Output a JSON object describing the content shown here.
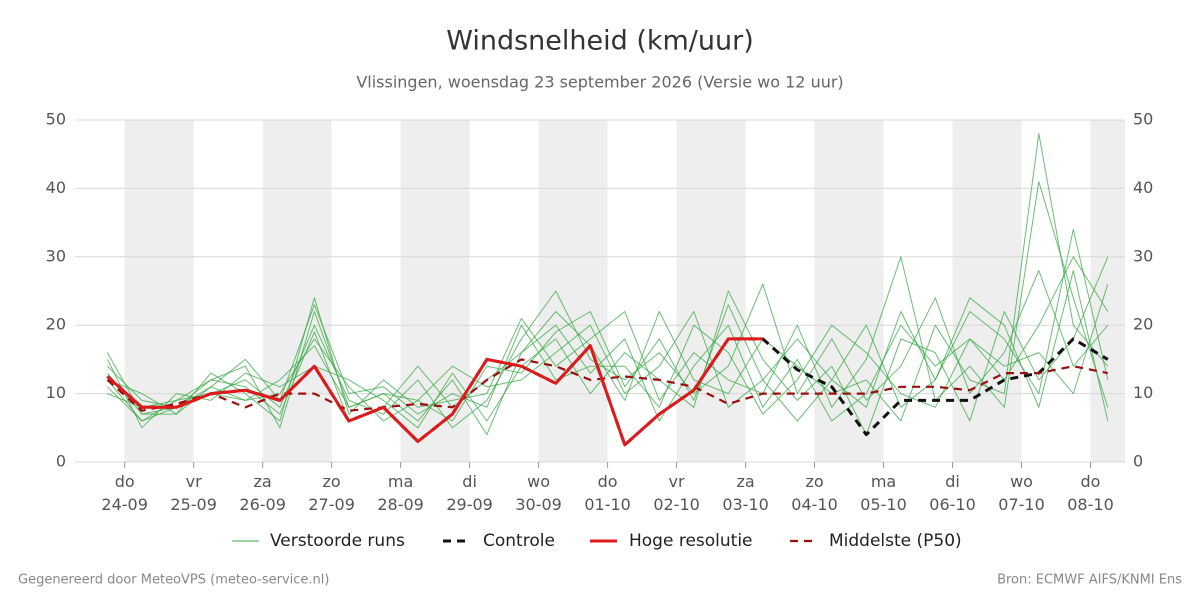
{
  "chart_data": {
    "type": "line",
    "title": "Windsnelheid (km/uur)",
    "subtitle": "Vlissingen, woensdag 23 september 2026 (Versie wo 12 uur)",
    "footer_left": "Gegenereerd door MeteoVPS (meteo-service.nl)",
    "footer_right": "Bron: ECMWF AIFS/KNMI Ens",
    "xlim": [
      -0.72,
      14.5
    ],
    "xticks": [
      {
        "value": 0,
        "label": "do 24-09"
      },
      {
        "value": 1,
        "label": "vr 25-09"
      },
      {
        "value": 2,
        "label": "za 26-09"
      },
      {
        "value": 3,
        "label": "zo 27-09"
      },
      {
        "value": 4,
        "label": "ma 28-09"
      },
      {
        "value": 5,
        "label": "di 29-09"
      },
      {
        "value": 6,
        "label": "wo 30-09"
      },
      {
        "value": 7,
        "label": "do 01-10"
      },
      {
        "value": 8,
        "label": "vr 02-10"
      },
      {
        "value": 9,
        "label": "za 03-10"
      },
      {
        "value": 10,
        "label": "zo 04-10"
      },
      {
        "value": 11,
        "label": "ma 05-10"
      },
      {
        "value": 12,
        "label": "di 06-10"
      },
      {
        "value": 13,
        "label": "wo 07-10"
      },
      {
        "value": 14,
        "label": "do 08-10"
      }
    ],
    "ylim": [
      0,
      50
    ],
    "yticks": [
      0,
      10,
      20,
      30,
      40,
      50
    ],
    "grid": true,
    "x": [
      -0.25,
      0.25,
      0.75,
      1.25,
      1.75,
      2.25,
      2.75,
      3.25,
      3.75,
      4.25,
      4.75,
      5.25,
      5.75,
      6.25,
      6.75,
      7.25,
      7.75,
      8.25,
      8.75,
      9.25,
      9.75,
      10.25,
      10.75,
      11.25,
      11.75,
      12.25,
      12.75,
      13.25,
      13.75,
      14.25
    ],
    "ensemble": {
      "name": "Verstoorde runs",
      "color": "#3aa845",
      "members": [
        [
          16,
          7,
          8,
          12,
          14,
          5,
          22,
          8,
          10,
          6,
          12,
          4,
          16,
          20,
          13,
          18,
          6,
          14,
          20,
          8,
          15,
          6,
          10,
          20,
          14,
          18,
          12,
          20,
          30,
          22
        ],
        [
          11,
          6,
          9,
          10,
          12,
          8,
          20,
          9,
          7,
          12,
          5,
          9,
          18,
          25,
          15,
          12,
          16,
          10,
          14,
          26,
          10,
          18,
          9,
          14,
          24,
          10,
          16,
          28,
          14,
          20
        ],
        [
          14,
          9,
          8,
          11,
          9,
          10,
          18,
          11,
          6,
          9,
          14,
          11,
          12,
          16,
          20,
          10,
          14,
          22,
          8,
          12,
          6,
          12,
          20,
          8,
          12,
          22,
          18,
          10,
          34,
          12
        ],
        [
          12,
          10,
          7,
          13,
          10,
          6,
          24,
          7,
          12,
          8,
          9,
          10,
          21,
          14,
          18,
          22,
          9,
          16,
          12,
          10,
          20,
          8,
          15,
          30,
          9,
          14,
          8,
          41,
          24,
          8
        ],
        [
          15,
          5,
          10,
          9,
          13,
          11,
          14,
          12,
          9,
          5,
          13,
          6,
          14,
          18,
          10,
          16,
          12,
          8,
          25,
          15,
          9,
          14,
          4,
          18,
          16,
          6,
          22,
          12,
          18,
          30
        ],
        [
          10,
          8,
          9,
          12,
          11,
          7,
          19,
          6,
          8,
          14,
          8,
          12,
          16,
          22,
          17,
          9,
          22,
          12,
          10,
          18,
          14,
          10,
          12,
          6,
          20,
          12,
          10,
          48,
          20,
          14
        ],
        [
          13,
          7,
          7,
          11,
          15,
          9,
          23,
          10,
          11,
          7,
          10,
          8,
          20,
          12,
          14,
          14,
          8,
          20,
          16,
          7,
          12,
          20,
          16,
          10,
          8,
          18,
          14,
          16,
          10,
          26
        ],
        [
          12,
          6,
          8,
          10,
          9,
          12,
          17,
          8,
          10,
          9,
          6,
          14,
          13,
          19,
          22,
          11,
          18,
          9,
          23,
          12,
          18,
          12,
          8,
          22,
          12,
          24,
          20,
          8,
          28,
          6
        ]
      ]
    },
    "series": [
      {
        "name": "Controle",
        "color": "#111111",
        "dash": true,
        "values": [
          12.5,
          8,
          8,
          10,
          10.5,
          9,
          14,
          6,
          8,
          3,
          7,
          15,
          14,
          11.5,
          17,
          2.5,
          7,
          10.5,
          18,
          18,
          13.5,
          11,
          4,
          9,
          9,
          9,
          12,
          13,
          18,
          15
        ]
      },
      {
        "name": "Hoge resolutie",
        "color": "#e0191b",
        "dash": false,
        "values": [
          12.5,
          8,
          8,
          10,
          10.5,
          9,
          14,
          6,
          8,
          3,
          7,
          15,
          14,
          11.5,
          17,
          2.5,
          7,
          10.5,
          18,
          18,
          null,
          null,
          null,
          null,
          null,
          null,
          null,
          null,
          null,
          null
        ]
      },
      {
        "name": "Middelste (P50)",
        "color": "#9a1010",
        "dash": true,
        "values": [
          12,
          7.5,
          8.5,
          10,
          8,
          10,
          10,
          7.5,
          8,
          8.5,
          8,
          12,
          15,
          14,
          12,
          12.5,
          12,
          11,
          8.5,
          10,
          10,
          10,
          10,
          11,
          11,
          10.5,
          13,
          13,
          14,
          13
        ]
      }
    ]
  }
}
